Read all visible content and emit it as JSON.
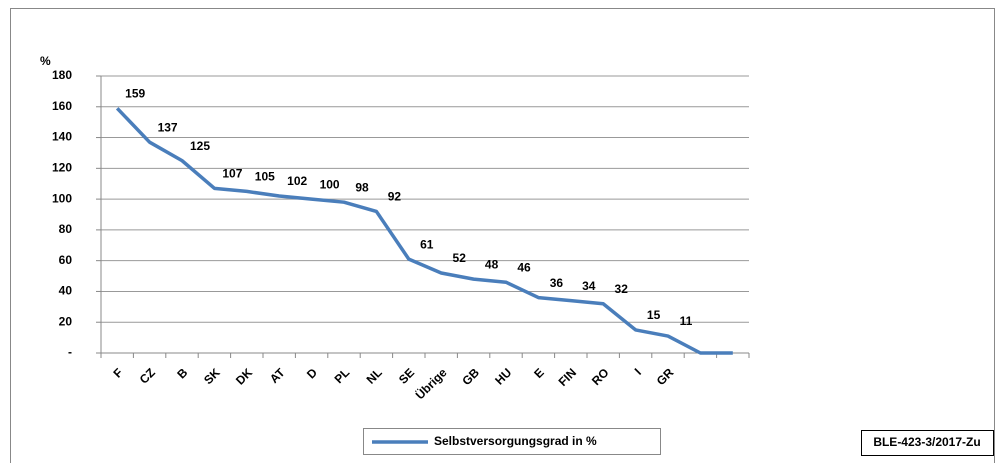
{
  "chart_data": {
    "type": "line",
    "y_label": "%",
    "categories": [
      "F",
      "CZ",
      "B",
      "SK",
      "DK",
      "AT",
      "D",
      "PL",
      "NL",
      "SE",
      "Übrige",
      "GB",
      "HU",
      "E",
      "FIN",
      "RO",
      "I",
      "GR",
      null,
      null
    ],
    "series": [
      {
        "name": "Selbstversorgungsgrad in %",
        "color": "#4a7ebb",
        "values": [
          159,
          137,
          125,
          107,
          105,
          102,
          100,
          98,
          92,
          61,
          52,
          48,
          46,
          36,
          34,
          32,
          15,
          11,
          0,
          0
        ],
        "value_labels": [
          "159",
          "137",
          "125",
          "107",
          "105",
          "102",
          "100",
          "98",
          "92",
          "61",
          "52",
          "48",
          "46",
          "36",
          "34",
          "32",
          "15",
          "11",
          null,
          null
        ]
      }
    ],
    "ylim": [
      0,
      180
    ],
    "yticks": [
      {
        "value": 0,
        "label": "-"
      },
      20,
      40,
      60,
      80,
      100,
      120,
      140,
      160,
      180
    ],
    "grid": true,
    "legend": "bottom",
    "source": "BLE-423-3/2017-Zu"
  }
}
